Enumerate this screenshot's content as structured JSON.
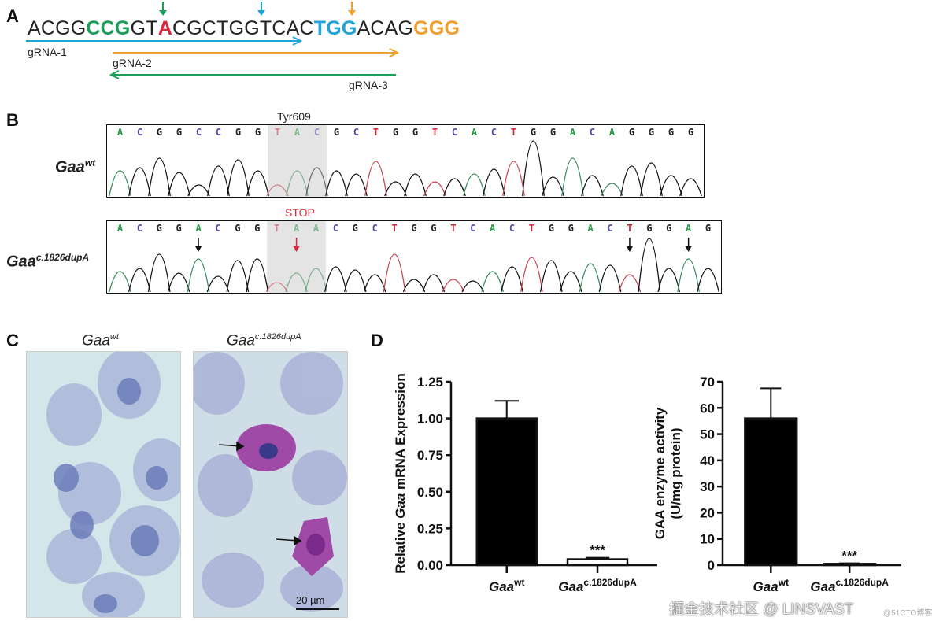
{
  "panel_a": {
    "label": "A",
    "sequence": [
      {
        "text": "ACGG",
        "color": "#222222"
      },
      {
        "text": "CCG",
        "color": "#1a9e5a",
        "bold": true
      },
      {
        "text": "GT",
        "color": "#222222"
      },
      {
        "text": "A",
        "color": "#e0243a",
        "bold": true
      },
      {
        "text": "CGCTGGTCAC",
        "color": "#222222"
      },
      {
        "text": "TGG",
        "color": "#22a3d8",
        "bold": true
      },
      {
        "text": "ACAG",
        "color": "#222222"
      },
      {
        "text": "GGG",
        "color": "#f0a030",
        "bold": true
      }
    ],
    "guides": [
      {
        "label": "gRNA-1",
        "color": "#22a3d8",
        "direction": "forward"
      },
      {
        "label": "gRNA-2",
        "color": "#f0a030",
        "direction": "forward"
      },
      {
        "label": "gRNA-3",
        "color": "#1a9e5a",
        "direction": "reverse"
      }
    ]
  },
  "panel_b": {
    "label": "B",
    "wt": {
      "name": "Gaa",
      "sup": "wt",
      "codon_label": "Tyr609",
      "bases": "ACGGCCGGTACGCTGGTCACTGGACAGGGG"
    },
    "mut": {
      "name": "Gaa",
      "sup": "c.1826dupA",
      "codon_label": "STOP",
      "bases": "ACGGACGGTAACGCTGGTCACTGGACTGGAG"
    },
    "base_colors": {
      "A": "#2a9a4a",
      "C": "#4a4aa8",
      "G": "#222222",
      "T": "#d02a3a"
    }
  },
  "panel_c": {
    "label": "C",
    "left_title": {
      "name": "Gaa",
      "sup": "wt"
    },
    "right_title": {
      "name": "Gaa",
      "sup": "c.1826dupA"
    },
    "scale_bar": "20 µm"
  },
  "panel_d": {
    "label": "D"
  },
  "chart_data": [
    {
      "type": "bar",
      "categories": [
        {
          "name": "Gaa",
          "sup": "wt"
        },
        {
          "name": "Gaa",
          "sup": "c.1826dupA"
        }
      ],
      "values": [
        1.0,
        0.04
      ],
      "error_upper": [
        1.12,
        0.05
      ],
      "fills": [
        "#000000",
        "#ffffff"
      ],
      "annotations": [
        "",
        "***"
      ],
      "ylabel_pre": "Relative ",
      "ylabel_it": "Gaa",
      "ylabel_post": " mRNA Expression",
      "ylim": [
        0,
        1.25
      ],
      "yticks": [
        "0.00",
        "0.25",
        "0.50",
        "0.75",
        "1.00",
        "1.25"
      ]
    },
    {
      "type": "bar",
      "categories": [
        {
          "name": "Gaa",
          "sup": "wt"
        },
        {
          "name": "Gaa",
          "sup": "c.1826dupA"
        }
      ],
      "values": [
        56,
        0.5
      ],
      "error_upper": [
        67.5,
        0.7
      ],
      "fills": [
        "#000000",
        "#ffffff"
      ],
      "annotations": [
        "",
        "***"
      ],
      "ylabel_line1": "GAA enzyme activity",
      "ylabel_line2": "(U/mg protein)",
      "ylim": [
        0,
        70
      ],
      "yticks": [
        "0",
        "10",
        "20",
        "30",
        "40",
        "50",
        "60",
        "70"
      ]
    }
  ],
  "watermark": {
    "main": "掘金技术社区 @ LINSVAST",
    "small": "@51CTO博客"
  }
}
